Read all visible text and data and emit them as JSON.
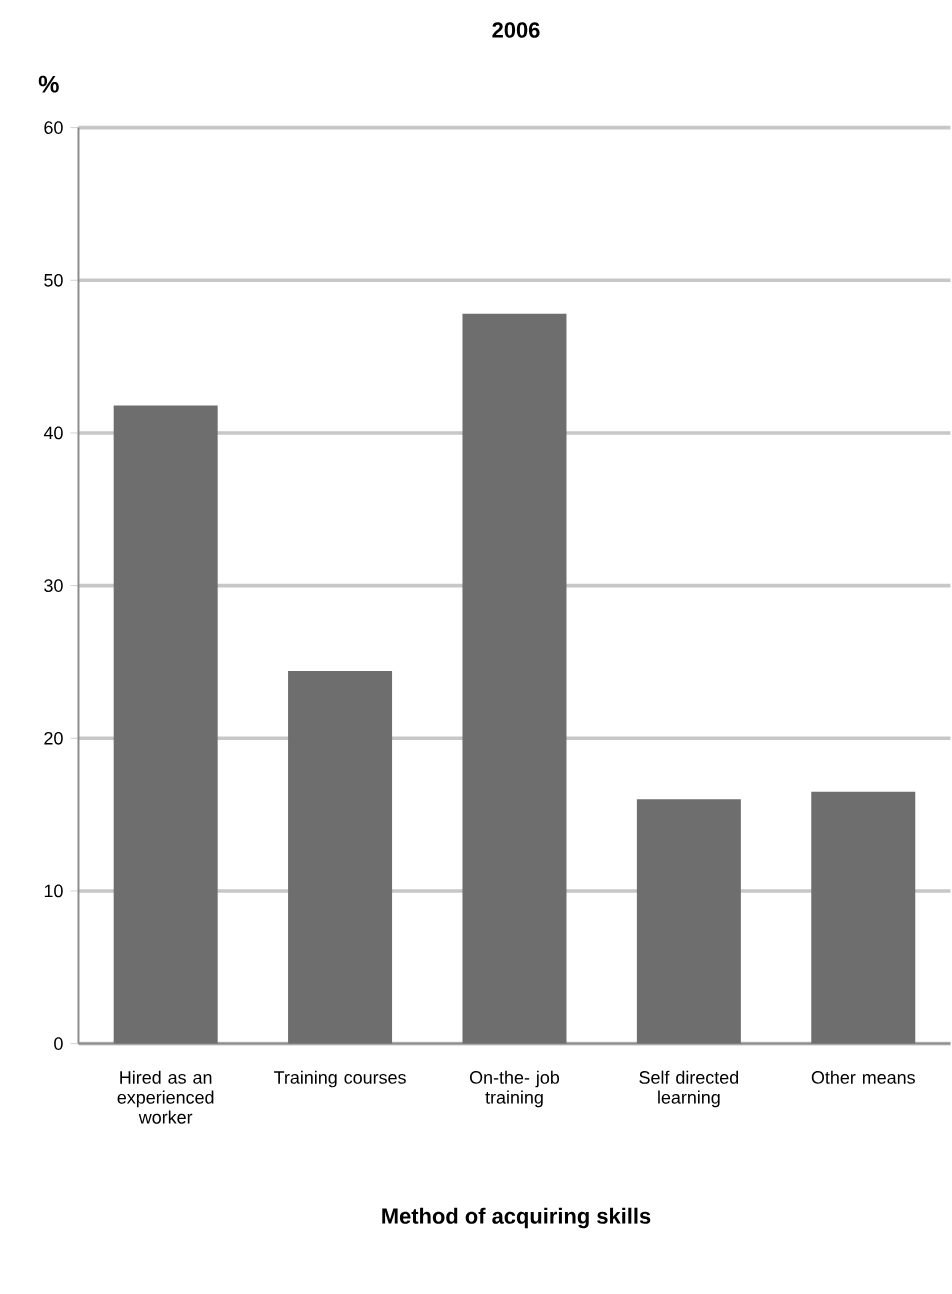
{
  "chart_data": {
    "type": "bar",
    "title": "2006",
    "ylabel": "%",
    "xlabel": "Method of acquiring skills",
    "categories": [
      "Hired as an experienced worker",
      "Training courses",
      "On-the- job training",
      "Self directed learning",
      "Other means"
    ],
    "values": [
      41.8,
      24.4,
      47.8,
      16.0,
      16.5
    ],
    "color": "#6d6e6d",
    "ylim": [
      0,
      60
    ],
    "yticks": [
      0,
      10,
      20,
      30,
      40,
      50,
      60
    ],
    "grid": "y"
  }
}
